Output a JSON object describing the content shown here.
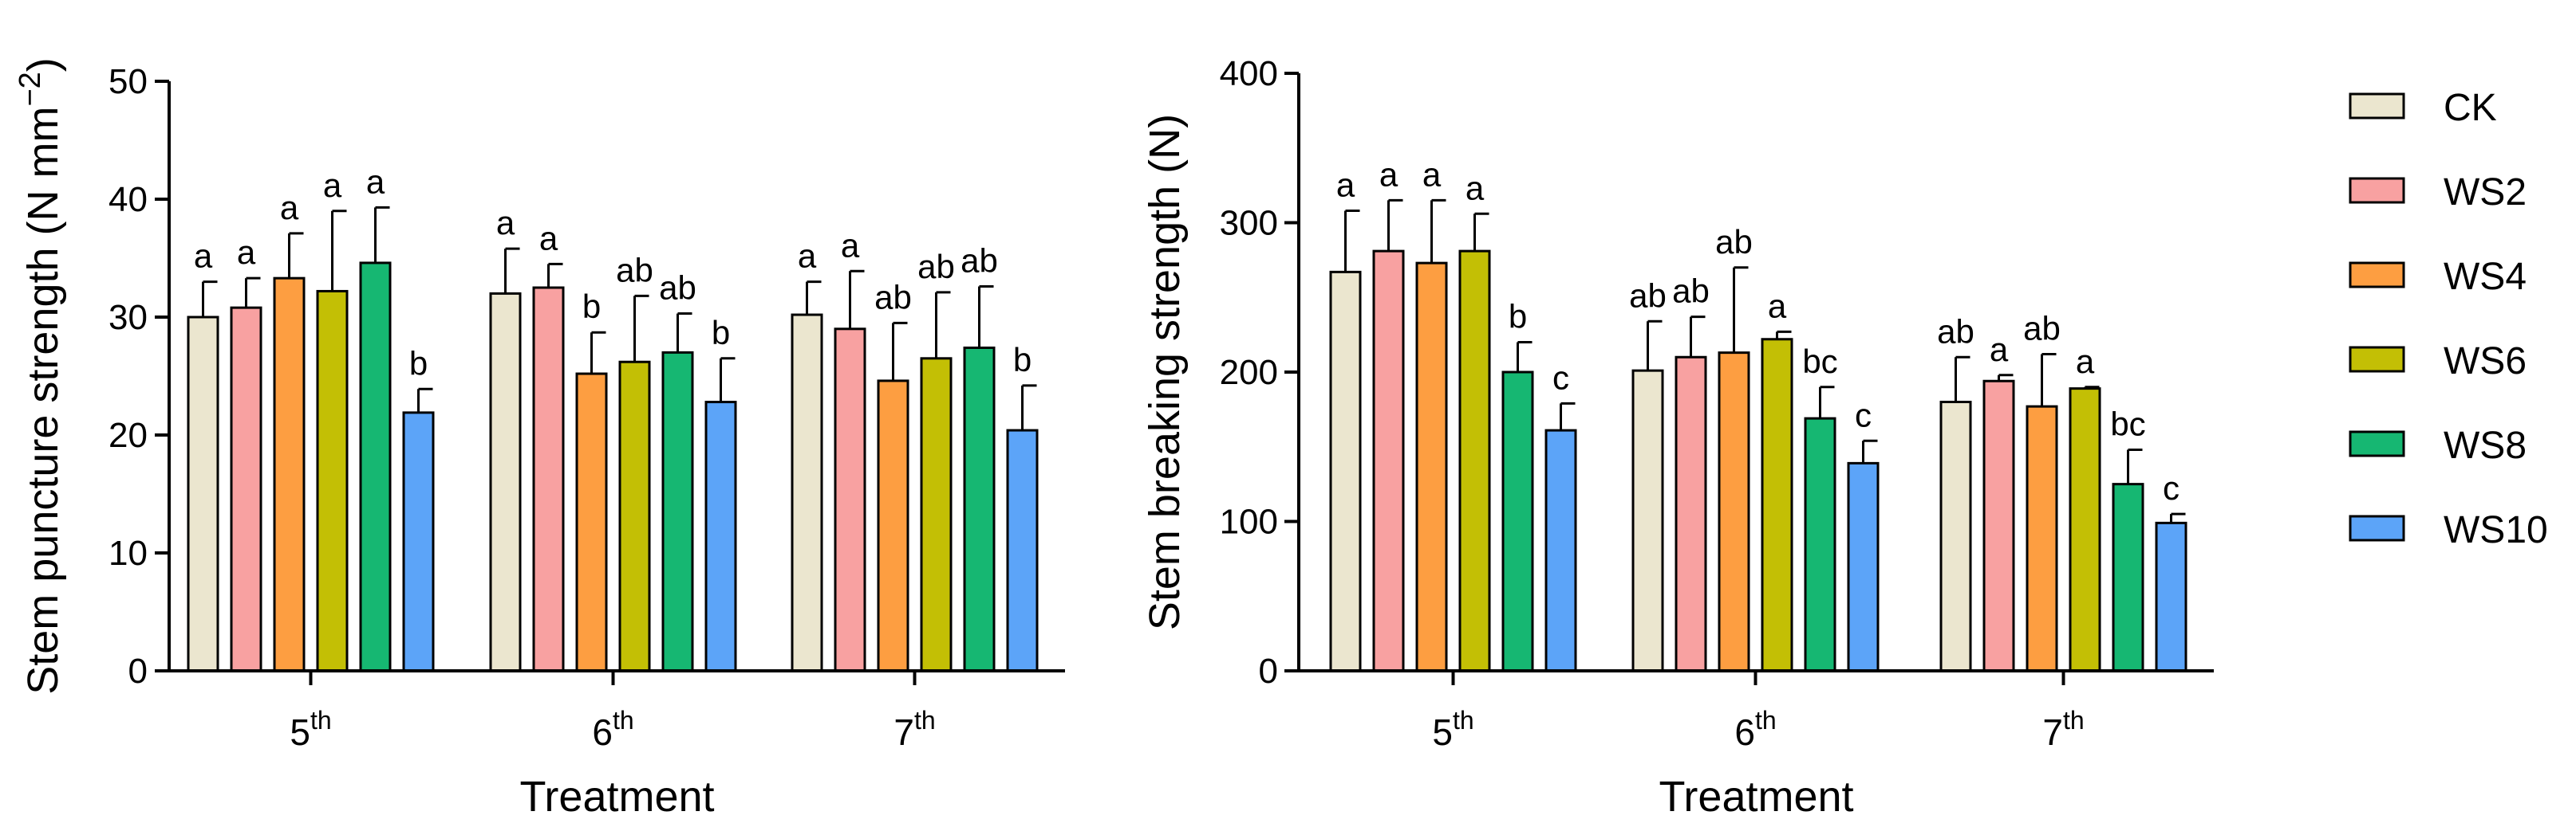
{
  "legend": {
    "entries": [
      {
        "name": "CK",
        "color": "#ebe6cf"
      },
      {
        "name": "WS2",
        "color": "#f8a1a1"
      },
      {
        "name": "WS4",
        "color": "#fd9e41"
      },
      {
        "name": "WS6",
        "color": "#c3bf05"
      },
      {
        "name": "WS8",
        "color": "#16b772"
      },
      {
        "name": "WS10",
        "color": "#5ca4f8"
      }
    ]
  },
  "chart_data": [
    {
      "type": "bar",
      "id": "puncture",
      "ylabel_main": "Stem puncture strength (N mm",
      "ylabel_sup": "−2",
      "ylabel_tail": ")",
      "xlabel": "Treatment",
      "ylim": [
        0,
        50
      ],
      "yticks": [
        0,
        10,
        20,
        30,
        40,
        50
      ],
      "category_base": [
        "5",
        "6",
        "7"
      ],
      "category_sup": "th",
      "series_names": [
        "CK",
        "WS2",
        "WS4",
        "WS6",
        "WS8",
        "WS10"
      ],
      "values": [
        [
          30.0,
          30.8,
          33.3,
          32.2,
          34.6,
          21.9
        ],
        [
          32.0,
          32.5,
          25.2,
          26.2,
          27.0,
          22.8
        ],
        [
          30.2,
          29.0,
          24.6,
          26.5,
          27.4,
          20.4
        ]
      ],
      "errors": [
        [
          3.0,
          2.5,
          3.8,
          6.8,
          4.7,
          2.0
        ],
        [
          3.8,
          2.0,
          3.5,
          5.6,
          3.3,
          3.7
        ],
        [
          2.8,
          4.9,
          4.9,
          5.6,
          5.2,
          3.8
        ]
      ],
      "letters": [
        [
          "a",
          "a",
          "a",
          "a",
          "a",
          "b"
        ],
        [
          "a",
          "a",
          "b",
          "ab",
          "ab",
          "b"
        ],
        [
          "a",
          "a",
          "ab",
          "ab",
          "ab",
          "b"
        ]
      ]
    },
    {
      "type": "bar",
      "id": "breaking",
      "ylabel_main": "Stem breaking strength (N)",
      "ylabel_sup": "",
      "ylabel_tail": "",
      "xlabel": "Treatment",
      "ylim": [
        0,
        400
      ],
      "yticks": [
        0,
        100,
        200,
        300,
        400
      ],
      "category_base": [
        "5",
        "6",
        "7"
      ],
      "category_sup": "th",
      "series_names": [
        "CK",
        "WS2",
        "WS4",
        "WS6",
        "WS8",
        "WS10"
      ],
      "values": [
        [
          267,
          281,
          273,
          281,
          200,
          161
        ],
        [
          201,
          210,
          213,
          222,
          169,
          139
        ],
        [
          180,
          194,
          177,
          189,
          125,
          99
        ]
      ],
      "errors": [
        [
          41,
          34,
          42,
          25,
          20,
          18
        ],
        [
          33,
          27,
          57,
          5,
          21,
          15
        ],
        [
          30,
          4,
          35,
          1,
          23,
          6
        ]
      ],
      "letters": [
        [
          "a",
          "a",
          "a",
          "a",
          "b",
          "c"
        ],
        [
          "ab",
          "ab",
          "ab",
          "a",
          "bc",
          "c"
        ],
        [
          "ab",
          "a",
          "ab",
          "a",
          "bc",
          "c"
        ]
      ]
    }
  ]
}
